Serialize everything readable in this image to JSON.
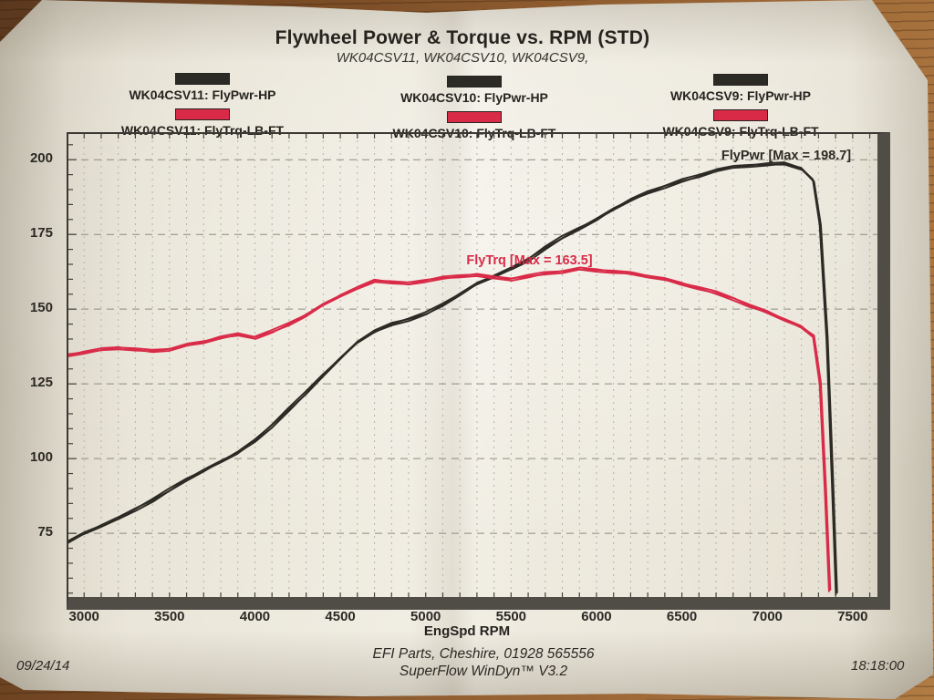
{
  "header": {
    "title": "Flywheel Power & Torque vs. RPM (STD)",
    "subtitle": "WK04CSV11, WK04CSV10, WK04CSV9,"
  },
  "legend": {
    "columns": [
      {
        "entries": [
          {
            "series_index": 0,
            "label": "WK04CSV11: FlyPwr-HP"
          },
          {
            "series_index": 1,
            "label": "WK04CSV11: FlyTrq-LB-FT"
          }
        ]
      },
      {
        "entries": [
          {
            "series_index": 0,
            "label": "WK04CSV10: FlyPwr-HP"
          },
          {
            "series_index": 1,
            "label": "WK04CSV10: FlyTrq-LB-FT"
          }
        ]
      },
      {
        "entries": [
          {
            "series_index": 0,
            "label": "WK04CSV9: FlyPwr-HP"
          },
          {
            "series_index": 1,
            "label": "WK04CSV9: FlyTrq-LB-FT"
          }
        ]
      }
    ]
  },
  "footer": {
    "line1": "EFI Parts, Cheshire, 01928 565556",
    "line2": "SuperFlow WinDyn™ V3.2",
    "date": "09/24/14",
    "time": "18:18:00"
  },
  "chart_data": {
    "type": "line",
    "title": "Flywheel Power & Torque vs. RPM (STD)",
    "subtitle": "WK04CSV11, WK04CSV10, WK04CSV9,",
    "xlabel": "EngSpd RPM",
    "ylabel": "",
    "legend_position": "top",
    "x_range": [
      2908,
      7645
    ],
    "y_range": [
      53.7,
      208.6
    ],
    "x_ticks": [
      3000,
      3500,
      4000,
      4500,
      5000,
      5500,
      6000,
      6500,
      7000,
      7500
    ],
    "y_ticks": [
      75,
      100,
      125,
      150,
      175,
      200
    ],
    "x_grid_step": 100,
    "y_minor_tick_step": 5,
    "grid": {
      "h_color": "#8f8b80",
      "v_color": "#b6b2a7",
      "tick_color": "#45433b",
      "grid_on": true
    },
    "annotations": [
      {
        "text": "FlyPwr [Max = 198.7]",
        "series_index": 0,
        "x": 7100,
        "y": 198.7
      },
      {
        "text": "FlyTrq [Max = 163.5]",
        "series_index": 1,
        "x": 5900,
        "y": 163.5
      }
    ],
    "series": [
      {
        "name": "FlyPwr-HP",
        "color": "#2c2a24",
        "max": 198.7,
        "points": [
          [
            2900,
            72
          ],
          [
            3000,
            75
          ],
          [
            3100,
            77.5
          ],
          [
            3200,
            80
          ],
          [
            3300,
            83
          ],
          [
            3400,
            86
          ],
          [
            3500,
            89.5
          ],
          [
            3600,
            93
          ],
          [
            3700,
            96
          ],
          [
            3800,
            99
          ],
          [
            3900,
            102
          ],
          [
            4000,
            106
          ],
          [
            4100,
            111
          ],
          [
            4200,
            116.5
          ],
          [
            4300,
            122
          ],
          [
            4400,
            128
          ],
          [
            4500,
            133.5
          ],
          [
            4600,
            139
          ],
          [
            4700,
            142.5
          ],
          [
            4800,
            145
          ],
          [
            4900,
            146.5
          ],
          [
            5000,
            148.5
          ],
          [
            5100,
            151.5
          ],
          [
            5200,
            155
          ],
          [
            5300,
            158.5
          ],
          [
            5400,
            161
          ],
          [
            5500,
            163.5
          ],
          [
            5600,
            166.5
          ],
          [
            5700,
            170.5
          ],
          [
            5800,
            174
          ],
          [
            5900,
            177
          ],
          [
            6000,
            180
          ],
          [
            6100,
            183.5
          ],
          [
            6200,
            186.5
          ],
          [
            6300,
            189
          ],
          [
            6400,
            191
          ],
          [
            6500,
            193
          ],
          [
            6600,
            194.5
          ],
          [
            6700,
            196.5
          ],
          [
            6800,
            197.5
          ],
          [
            6900,
            198
          ],
          [
            7000,
            198.4
          ],
          [
            7100,
            198.7
          ],
          [
            7200,
            197
          ],
          [
            7270,
            193
          ],
          [
            7310,
            178
          ],
          [
            7350,
            140
          ],
          [
            7380,
            95
          ],
          [
            7405,
            55
          ]
        ]
      },
      {
        "name": "FlyTrq-LB-FT",
        "color": "#d92b48",
        "max": 163.5,
        "points": [
          [
            2900,
            134.5
          ],
          [
            3000,
            135.5
          ],
          [
            3100,
            136.5
          ],
          [
            3200,
            137
          ],
          [
            3300,
            136.5
          ],
          [
            3400,
            136
          ],
          [
            3500,
            136.5
          ],
          [
            3600,
            138
          ],
          [
            3700,
            139
          ],
          [
            3800,
            140.5
          ],
          [
            3900,
            141.5
          ],
          [
            4000,
            140.5
          ],
          [
            4100,
            142.5
          ],
          [
            4200,
            145
          ],
          [
            4300,
            148
          ],
          [
            4400,
            151.5
          ],
          [
            4500,
            154.5
          ],
          [
            4600,
            157
          ],
          [
            4700,
            159.5
          ],
          [
            4800,
            159
          ],
          [
            4900,
            158.5
          ],
          [
            5000,
            159.5
          ],
          [
            5100,
            160.5
          ],
          [
            5200,
            161
          ],
          [
            5300,
            161.5
          ],
          [
            5400,
            160.5
          ],
          [
            5500,
            160
          ],
          [
            5600,
            161
          ],
          [
            5700,
            162
          ],
          [
            5800,
            162.5
          ],
          [
            5900,
            163.5
          ],
          [
            6000,
            163
          ],
          [
            6100,
            162.5
          ],
          [
            6200,
            162
          ],
          [
            6300,
            161
          ],
          [
            6400,
            160
          ],
          [
            6500,
            158.5
          ],
          [
            6600,
            157
          ],
          [
            6700,
            155.5
          ],
          [
            6800,
            153.5
          ],
          [
            6900,
            151
          ],
          [
            7000,
            149
          ],
          [
            7100,
            146.5
          ],
          [
            7200,
            144
          ],
          [
            7270,
            141
          ],
          [
            7310,
            125
          ],
          [
            7340,
            90
          ],
          [
            7365,
            56
          ]
        ]
      }
    ]
  }
}
